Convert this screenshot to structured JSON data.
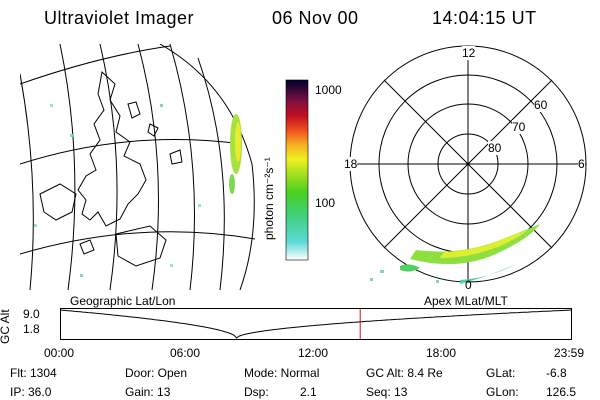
{
  "header": {
    "instrument": "Ultraviolet Imager",
    "date": "06 Nov 00",
    "time": "14:04:15 UT"
  },
  "colorbar": {
    "label": "photon cm⁻²s⁻¹",
    "ticks": [
      "1000",
      "100"
    ]
  },
  "polar_plot": {
    "mlt_labels": [
      "12",
      "18",
      "6",
      "0"
    ],
    "lat_labels": [
      "60",
      "70",
      "80"
    ]
  },
  "panels": {
    "left_caption": "Geographic Lat/Lon",
    "right_caption": "Apex MLat/MLT"
  },
  "timeline": {
    "ylabel": "GC Alt",
    "y_ticks": [
      "9.0",
      "1.8"
    ],
    "x_ticks": [
      "00:00",
      "06:00",
      "12:00",
      "18:00",
      "23:59"
    ]
  },
  "info": {
    "flt": "Flt: 1304",
    "ip": "IP: 36.0",
    "door": "Door: Open",
    "gain": "Gain: 13",
    "mode": "Mode: Normal",
    "dsp_label": "Dsp:",
    "dsp_value": "2.1",
    "gcalt": "GC Alt: 8.4 Re",
    "seq": "Seq: 13",
    "glat_label": "GLat:",
    "glat_value": "-6.8",
    "glon_label": "GLon:",
    "glon_value": "126.5"
  }
}
